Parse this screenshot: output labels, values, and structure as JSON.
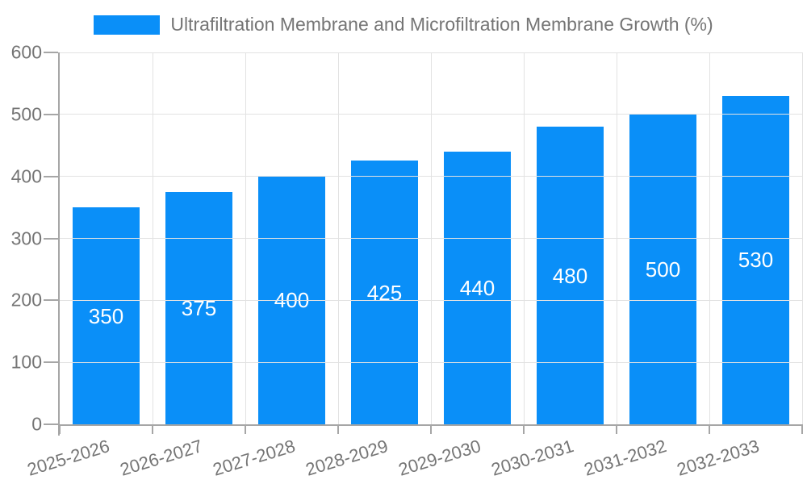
{
  "colors": {
    "bar": "#0a8ff8",
    "text": "#757575",
    "grid": "#e2e2e2",
    "axis": "#a6a6a6",
    "value_label": "#ffffff",
    "background": "#ffffff"
  },
  "chart_data": {
    "type": "bar",
    "title": "",
    "legend": [
      "Ultrafiltration Membrane and Microfiltration Membrane Growth (%)"
    ],
    "legend_position": "top",
    "categories": [
      "2025-2026",
      "2026-2027",
      "2027-2028",
      "2028-2029",
      "2029-2030",
      "2030-2031",
      "2031-2032",
      "2032-2033"
    ],
    "values": [
      350,
      375,
      400,
      425,
      440,
      480,
      500,
      530
    ],
    "bar_labels": true,
    "xlabel": "",
    "ylabel": "",
    "ylim": [
      0,
      600
    ],
    "ytick_interval": 100,
    "yticks": [
      0,
      100,
      200,
      300,
      400,
      500,
      600
    ],
    "grid": true,
    "x_label_rotation_deg": -17
  }
}
